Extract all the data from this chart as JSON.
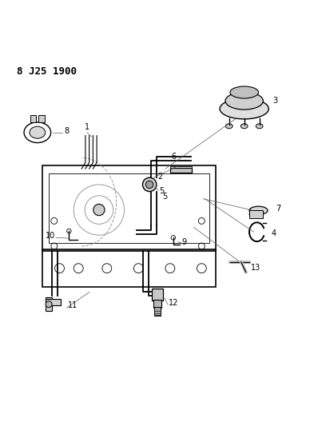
{
  "title": "8 J25 1900",
  "background_color": "#ffffff",
  "line_color": "#000000",
  "figsize": [
    3.98,
    5.33
  ],
  "dpi": 100
}
